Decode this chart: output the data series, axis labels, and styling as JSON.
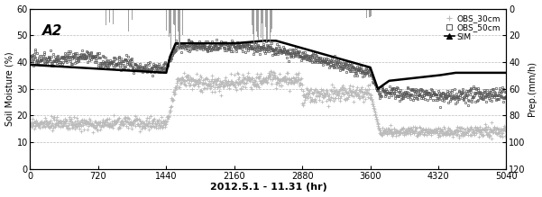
{
  "title": "A2",
  "xlabel": "2012.5.1 - 11.31 (hr)",
  "ylabel_left": "Soil Moisture (%)",
  "ylabel_right": "Prep.(mm/h)",
  "xlim": [
    0,
    5040
  ],
  "ylim_left": [
    0,
    60
  ],
  "ylim_right": [
    0,
    120
  ],
  "yticks_left": [
    0,
    10,
    20,
    30,
    40,
    50,
    60
  ],
  "yticks_right": [
    0,
    20,
    40,
    60,
    80,
    100,
    120
  ],
  "xticks": [
    0,
    720,
    1440,
    2160,
    2880,
    3600,
    4320,
    5040
  ],
  "xtick_labels": [
    "0",
    "720",
    "1440",
    "2160",
    "2880",
    "3600",
    "4320",
    "5040"
  ],
  "legend_labels": [
    "OBS_30cm",
    "OBS_50cm",
    "SIM"
  ],
  "bg_color": "#ffffff",
  "grid_color": "#bbbbbb",
  "obs30_color": "#bbbbbb",
  "obs50_color": "#555555",
  "sim_color": "#000000",
  "prep_color": "#888888",
  "figsize": [
    6.01,
    2.19
  ],
  "dpi": 100
}
